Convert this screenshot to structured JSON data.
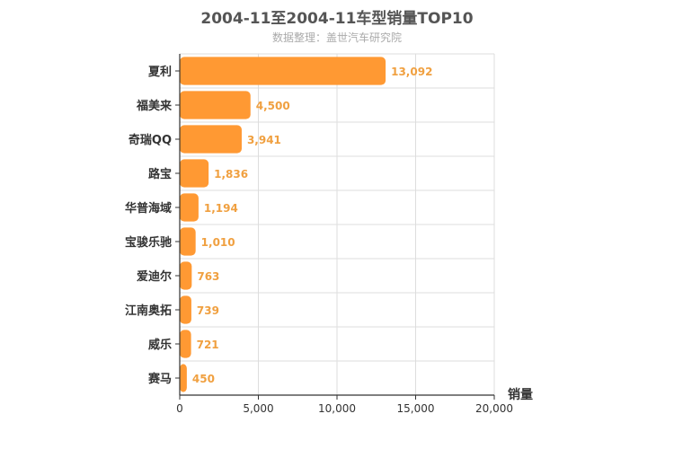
{
  "chart_data": {
    "type": "bar",
    "orientation": "horizontal",
    "title": "2004-11至2004-11车型销量TOP10",
    "subtitle": "数据整理：盖世汽车研究院",
    "xlabel": "销量",
    "ylabel": "",
    "xlim": [
      0,
      20000
    ],
    "x_ticks": [
      "0",
      "5,000",
      "10,000",
      "15,000",
      "20,000"
    ],
    "grid": true,
    "categories": [
      "夏利",
      "福美来",
      "奇瑞QQ",
      "路宝",
      "华普海域",
      "宝骏乐驰",
      "爱迪尔",
      "江南奥拓",
      "威乐",
      "赛马"
    ],
    "values": [
      13092,
      4500,
      3941,
      1836,
      1194,
      1010,
      763,
      739,
      721,
      450
    ],
    "data_labels": [
      "13,092",
      "4,500",
      "3,941",
      "1,836",
      "1,194",
      "1,010",
      "763",
      "739",
      "721",
      "450"
    ],
    "colors": {
      "bar": "#ff9933",
      "data_label": "#f0a040",
      "grid": "#dddddd",
      "axis": "#333333"
    }
  }
}
